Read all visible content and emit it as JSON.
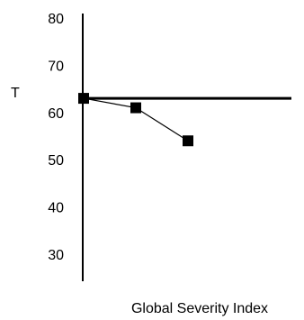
{
  "chart_data": {
    "type": "line",
    "title": "",
    "xlabel": "Global Severity Index",
    "ylabel": "T",
    "ylim": [
      30,
      80
    ],
    "yticks": [
      30,
      40,
      50,
      60,
      70,
      80
    ],
    "grid": false,
    "legend": "none",
    "reference_line": {
      "y": 63
    },
    "series": [
      {
        "x": [
          1,
          2,
          3
        ],
        "values": [
          63,
          61,
          54
        ]
      }
    ],
    "colors": {
      "line": "#000000",
      "marker": "#000000"
    }
  }
}
